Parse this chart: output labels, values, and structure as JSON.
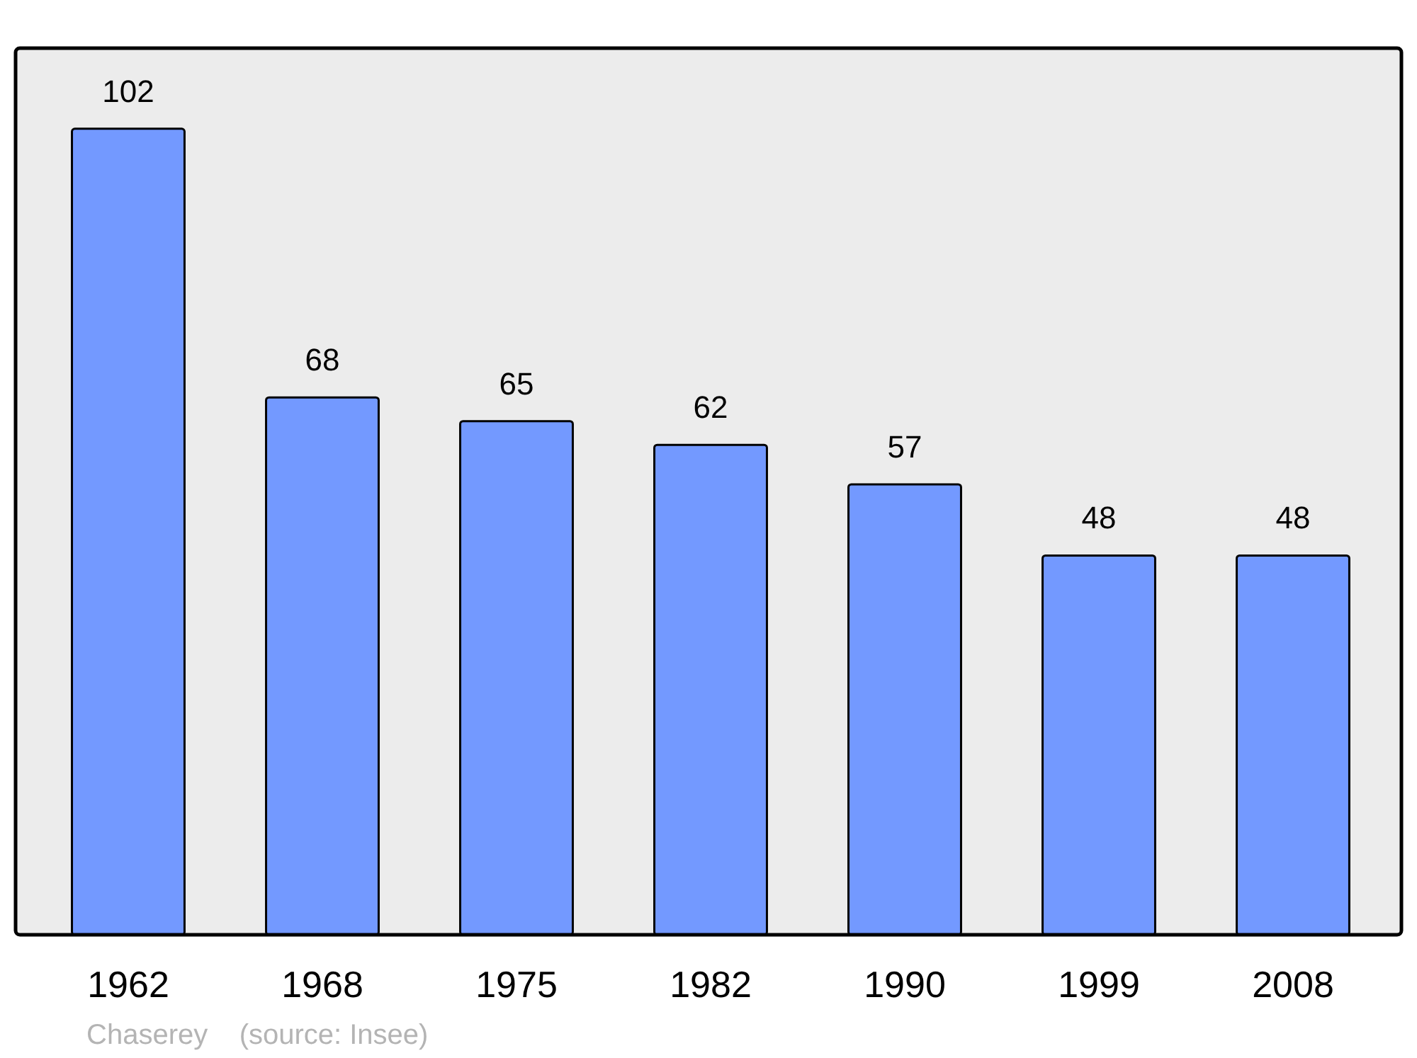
{
  "chart_data": {
    "type": "bar",
    "categories": [
      "1962",
      "1968",
      "1975",
      "1982",
      "1990",
      "1999",
      "2008"
    ],
    "values": [
      102,
      68,
      65,
      62,
      57,
      48,
      48
    ],
    "color": "#7399ff",
    "data_labels": true,
    "annotations": [
      "Chaserey    (source: Insee)"
    ]
  }
}
